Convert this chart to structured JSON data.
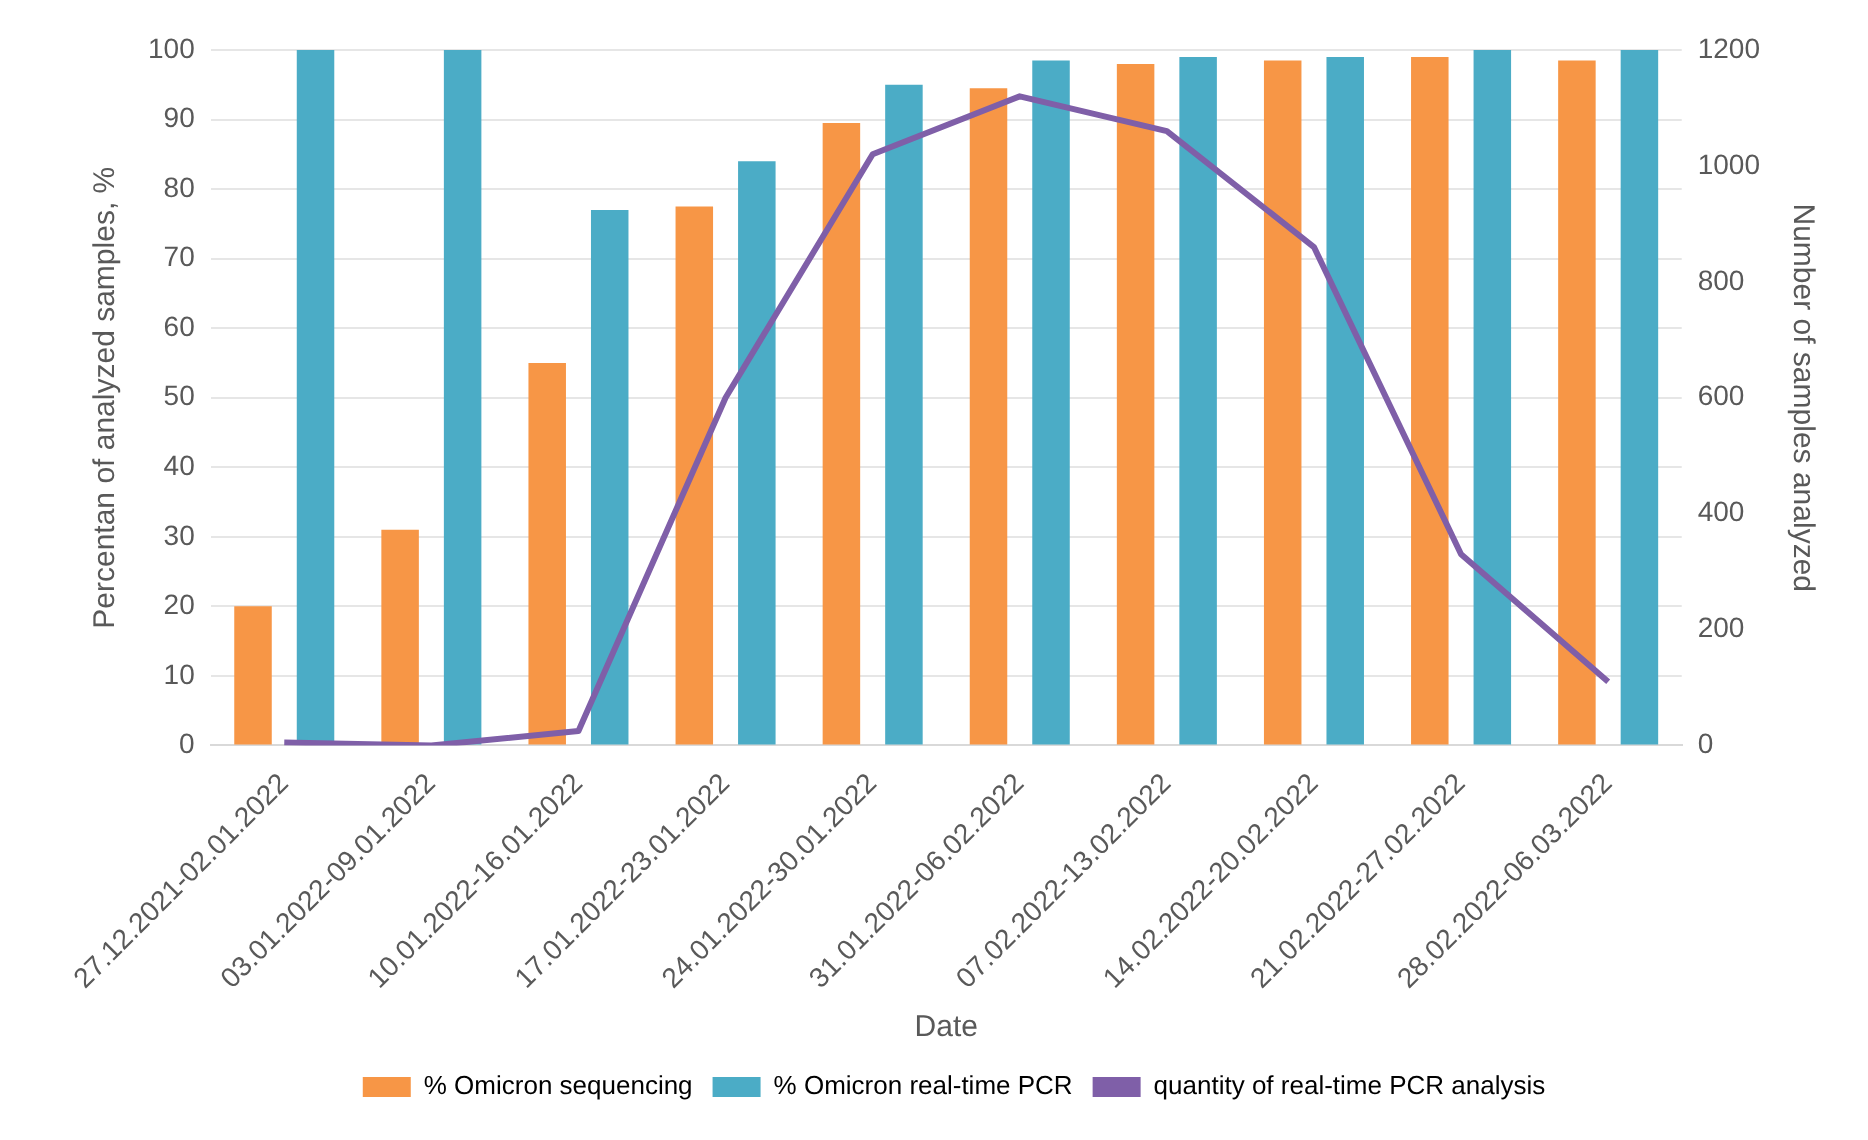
{
  "chart_data": {
    "type": "bar",
    "xlabel": "Date",
    "ylabel": "Percentan of analyzed samples, %",
    "y2label": "Number of samples analyzed",
    "categories": [
      "27.12.2021-02.01.2022",
      "03.01.2022-09.01.2022",
      "10.01.2022-16.01.2022",
      "17.01.2022-23.01.2022",
      "24.01.2022-30.01.2022",
      "31.01.2022-06.02.2022",
      "07.02.2022-13.02.2022",
      "14.02.2022-20.02.2022",
      "21.02.2022-27.02.2022",
      "28.02.2022-06.03.2022"
    ],
    "series": [
      {
        "name": "% Omicron sequencing",
        "color": "#f79646",
        "values": [
          20,
          31,
          55,
          77.5,
          89.5,
          94.5,
          98,
          98.5,
          99,
          98.5
        ]
      },
      {
        "name": "% Omicron real-time PCR",
        "color": "#4bacc6",
        "values": [
          100,
          100,
          77,
          84,
          95,
          98.5,
          99,
          99,
          100,
          100
        ]
      },
      {
        "name": "quantity of real-time PCR analysis",
        "type": "line",
        "axis": "y2",
        "color": "#7f5fa8",
        "values": [
          5,
          0,
          25,
          600,
          1020,
          1120,
          1060,
          860,
          330,
          110
        ]
      }
    ],
    "ylim": [
      0,
      100
    ],
    "yticks": [
      0,
      10,
      20,
      30,
      40,
      50,
      60,
      70,
      80,
      90,
      100
    ],
    "y2lim": [
      0,
      1200
    ],
    "y2ticks": [
      0,
      200,
      400,
      600,
      800,
      1000,
      1200
    ],
    "grid": "y",
    "legend": "bottom",
    "marker": "none"
  }
}
